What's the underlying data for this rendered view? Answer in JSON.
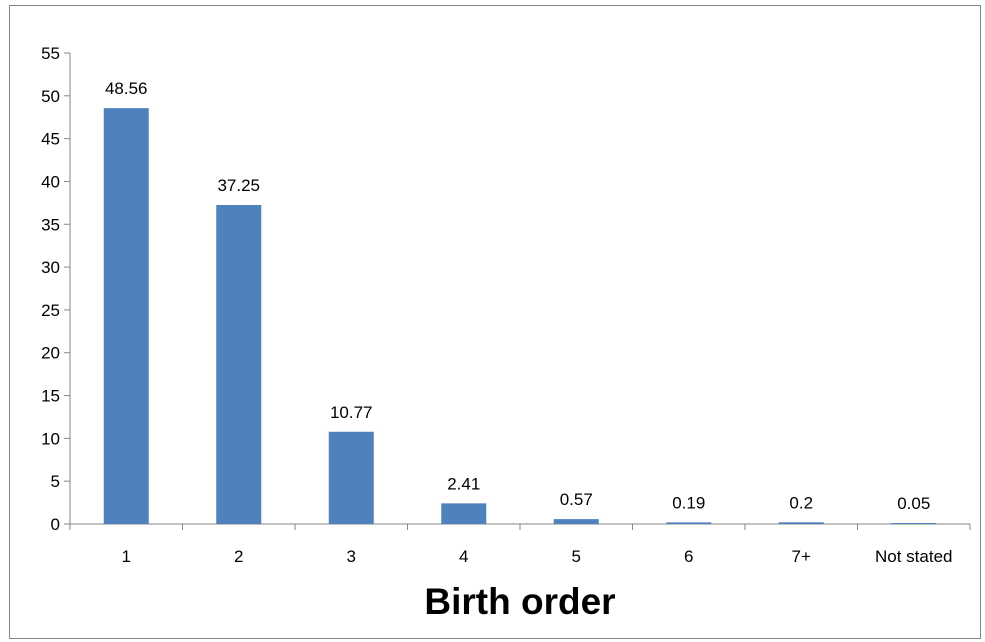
{
  "chart_data": {
    "type": "bar",
    "title": "",
    "xlabel": "Birth order",
    "ylabel": "",
    "categories": [
      "1",
      "2",
      "3",
      "4",
      "5",
      "6",
      "7+",
      "Not stated"
    ],
    "values": [
      48.56,
      37.25,
      10.77,
      2.41,
      0.57,
      0.19,
      0.2,
      0.05
    ],
    "data_labels": [
      "48.56",
      "37.25",
      "10.77",
      "2.41",
      "0.57",
      "0.19",
      "0.2",
      "0.05"
    ],
    "ylim": [
      0,
      55
    ],
    "yticks": [
      0,
      5,
      10,
      15,
      20,
      25,
      30,
      35,
      40,
      45,
      50,
      55
    ],
    "grid": false,
    "legend": "none",
    "bar_color": "#4F81BD"
  }
}
